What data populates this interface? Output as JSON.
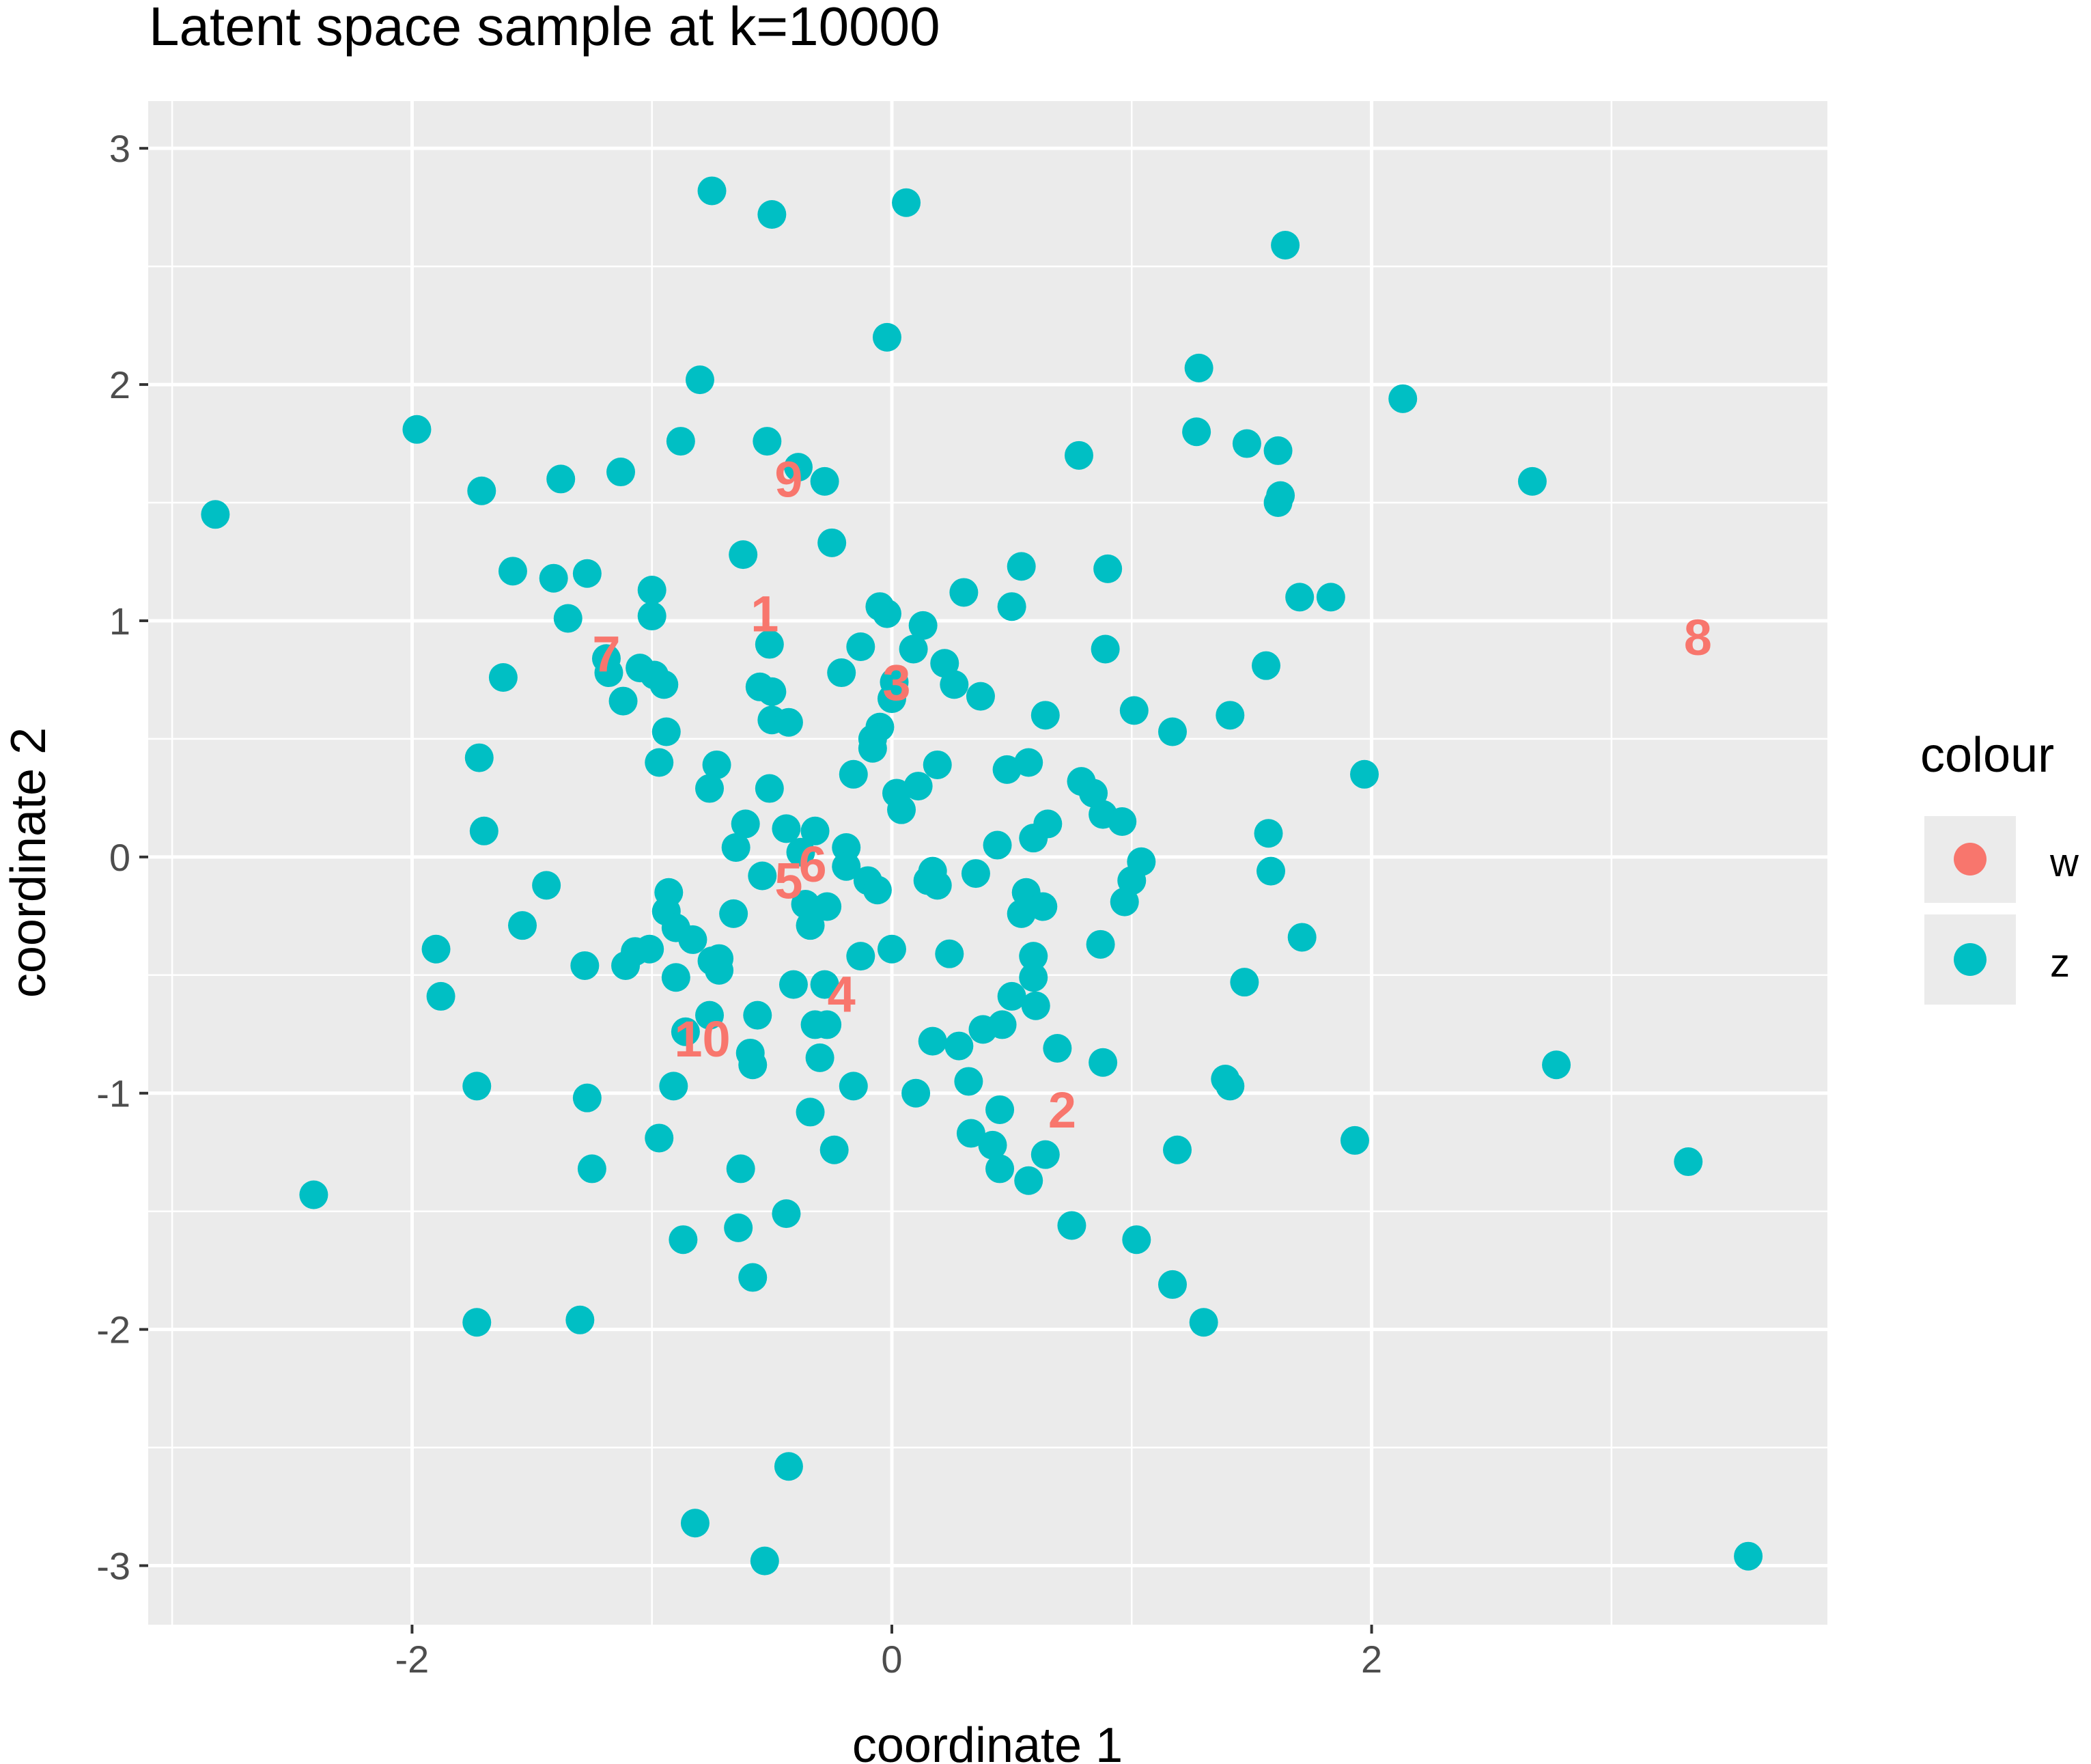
{
  "chart_data": {
    "type": "scatter",
    "title": "Latent space sample at k=10000",
    "xlabel": "coordinate 1",
    "ylabel": "coordinate 2",
    "xlim": [
      -3.1,
      3.9
    ],
    "ylim": [
      -3.25,
      3.2
    ],
    "x_ticks": [
      -2,
      0,
      2
    ],
    "y_ticks": [
      -3,
      -2,
      -1,
      0,
      1,
      2,
      3
    ],
    "grid": true,
    "background": "#EBEBEB",
    "legend": {
      "title": "colour",
      "position": "right",
      "entries": [
        {
          "name": "w",
          "color": "#F8766D"
        },
        {
          "name": "z",
          "color": "#00BFC4"
        }
      ]
    },
    "series": [
      {
        "name": "z",
        "color": "#00BFC4",
        "points": [
          [
            -0.75,
            2.82
          ],
          [
            -0.5,
            2.72
          ],
          [
            0.06,
            2.77
          ],
          [
            1.64,
            2.59
          ],
          [
            -0.02,
            2.2
          ],
          [
            -0.8,
            2.02
          ],
          [
            1.28,
            2.07
          ],
          [
            2.13,
            1.94
          ],
          [
            -1.98,
            1.81
          ],
          [
            -0.88,
            1.76
          ],
          [
            -0.52,
            1.76
          ],
          [
            1.27,
            1.8
          ],
          [
            1.48,
            1.75
          ],
          [
            1.61,
            1.72
          ],
          [
            0.78,
            1.7
          ],
          [
            -0.39,
            1.65
          ],
          [
            -1.71,
            1.55
          ],
          [
            -1.38,
            1.6
          ],
          [
            -1.13,
            1.63
          ],
          [
            -0.28,
            1.59
          ],
          [
            2.67,
            1.59
          ],
          [
            1.62,
            1.53
          ],
          [
            1.61,
            1.5
          ],
          [
            -2.82,
            1.45
          ],
          [
            -0.25,
            1.33
          ],
          [
            -0.62,
            1.28
          ],
          [
            -1.58,
            1.21
          ],
          [
            -1.41,
            1.18
          ],
          [
            -1.27,
            1.2
          ],
          [
            0.54,
            1.23
          ],
          [
            0.9,
            1.22
          ],
          [
            -1.0,
            1.13
          ],
          [
            0.3,
            1.12
          ],
          [
            -1.35,
            1.01
          ],
          [
            -1.0,
            1.02
          ],
          [
            -0.05,
            1.06
          ],
          [
            0.5,
            1.06
          ],
          [
            1.7,
            1.1
          ],
          [
            1.83,
            1.1
          ],
          [
            -0.02,
            1.03
          ],
          [
            0.13,
            0.98
          ],
          [
            -0.51,
            0.9
          ],
          [
            -0.13,
            0.89
          ],
          [
            0.09,
            0.88
          ],
          [
            0.89,
            0.88
          ],
          [
            -1.19,
            0.84
          ],
          [
            -1.18,
            0.78
          ],
          [
            -1.05,
            0.8
          ],
          [
            -0.99,
            0.77
          ],
          [
            -0.95,
            0.73
          ],
          [
            0.22,
            0.82
          ],
          [
            -0.21,
            0.78
          ],
          [
            1.56,
            0.81
          ],
          [
            -1.62,
            0.76
          ],
          [
            -0.55,
            0.72
          ],
          [
            -0.5,
            0.7
          ],
          [
            0.01,
            0.74
          ],
          [
            0.26,
            0.73
          ],
          [
            0.37,
            0.68
          ],
          [
            -1.12,
            0.66
          ],
          [
            -0.5,
            0.58
          ],
          [
            -0.43,
            0.57
          ],
          [
            0.0,
            0.67
          ],
          [
            0.64,
            0.6
          ],
          [
            1.01,
            0.62
          ],
          [
            1.41,
            0.6
          ],
          [
            -0.94,
            0.53
          ],
          [
            1.17,
            0.53
          ],
          [
            -0.05,
            0.55
          ],
          [
            -0.08,
            0.5
          ],
          [
            -0.08,
            0.46
          ],
          [
            -1.72,
            0.42
          ],
          [
            -0.73,
            0.39
          ],
          [
            0.19,
            0.39
          ],
          [
            0.57,
            0.4
          ],
          [
            0.48,
            0.37
          ],
          [
            -0.97,
            0.4
          ],
          [
            -0.16,
            0.35
          ],
          [
            1.97,
            0.35
          ],
          [
            0.79,
            0.32
          ],
          [
            0.11,
            0.3
          ],
          [
            -0.51,
            0.29
          ],
          [
            -0.76,
            0.29
          ],
          [
            0.84,
            0.27
          ],
          [
            0.02,
            0.27
          ],
          [
            0.04,
            0.2
          ],
          [
            0.88,
            0.18
          ],
          [
            0.96,
            0.15
          ],
          [
            -0.61,
            0.14
          ],
          [
            0.65,
            0.14
          ],
          [
            -0.44,
            0.12
          ],
          [
            -0.32,
            0.11
          ],
          [
            -1.7,
            0.11
          ],
          [
            1.57,
            0.1
          ],
          [
            0.59,
            0.08
          ],
          [
            -0.65,
            0.04
          ],
          [
            0.44,
            0.05
          ],
          [
            -0.19,
            0.04
          ],
          [
            -0.38,
            0.02
          ],
          [
            1.04,
            -0.02
          ],
          [
            -0.19,
            -0.04
          ],
          [
            0.17,
            -0.06
          ],
          [
            0.35,
            -0.07
          ],
          [
            1.58,
            -0.06
          ],
          [
            -0.54,
            -0.08
          ],
          [
            0.15,
            -0.1
          ],
          [
            0.19,
            -0.12
          ],
          [
            -0.1,
            -0.1
          ],
          [
            -1.44,
            -0.12
          ],
          [
            1.0,
            -0.1
          ],
          [
            -0.06,
            -0.14
          ],
          [
            -0.93,
            -0.15
          ],
          [
            0.56,
            -0.15
          ],
          [
            -0.36,
            -0.2
          ],
          [
            0.63,
            -0.21
          ],
          [
            -0.27,
            -0.21
          ],
          [
            0.97,
            -0.19
          ],
          [
            0.54,
            -0.24
          ],
          [
            -0.94,
            -0.23
          ],
          [
            -0.66,
            -0.24
          ],
          [
            -0.9,
            -0.3
          ],
          [
            -1.54,
            -0.29
          ],
          [
            -0.34,
            -0.29
          ],
          [
            -0.83,
            -0.35
          ],
          [
            1.71,
            -0.34
          ],
          [
            -1.07,
            -0.4
          ],
          [
            -1.01,
            -0.39
          ],
          [
            0.0,
            -0.39
          ],
          [
            0.87,
            -0.37
          ],
          [
            -1.9,
            -0.39
          ],
          [
            0.24,
            -0.41
          ],
          [
            -0.13,
            -0.42
          ],
          [
            0.59,
            -0.42
          ],
          [
            -0.75,
            -0.44
          ],
          [
            -0.72,
            -0.43
          ],
          [
            -1.11,
            -0.46
          ],
          [
            -1.28,
            -0.46
          ],
          [
            -0.72,
            -0.48
          ],
          [
            -0.9,
            -0.51
          ],
          [
            0.59,
            -0.51
          ],
          [
            -0.41,
            -0.54
          ],
          [
            -0.28,
            -0.54
          ],
          [
            1.47,
            -0.53
          ],
          [
            -1.88,
            -0.59
          ],
          [
            0.5,
            -0.59
          ],
          [
            0.6,
            -0.63
          ],
          [
            -0.56,
            -0.67
          ],
          [
            -0.76,
            -0.67
          ],
          [
            -0.32,
            -0.71
          ],
          [
            -0.27,
            -0.71
          ],
          [
            0.38,
            -0.73
          ],
          [
            0.46,
            -0.71
          ],
          [
            -0.86,
            -0.74
          ],
          [
            0.17,
            -0.78
          ],
          [
            0.28,
            -0.8
          ],
          [
            0.69,
            -0.81
          ],
          [
            -0.59,
            -0.83
          ],
          [
            -0.58,
            -0.88
          ],
          [
            -0.3,
            -0.85
          ],
          [
            0.88,
            -0.87
          ],
          [
            2.77,
            -0.88
          ],
          [
            1.39,
            -0.94
          ],
          [
            1.41,
            -0.97
          ],
          [
            -1.73,
            -0.97
          ],
          [
            -0.91,
            -0.97
          ],
          [
            -0.16,
            -0.97
          ],
          [
            0.32,
            -0.95
          ],
          [
            0.1,
            -1.0
          ],
          [
            -1.27,
            -1.02
          ],
          [
            0.45,
            -1.07
          ],
          [
            -0.34,
            -1.08
          ],
          [
            0.33,
            -1.17
          ],
          [
            -0.97,
            -1.19
          ],
          [
            0.42,
            -1.22
          ],
          [
            -0.24,
            -1.24
          ],
          [
            0.64,
            -1.26
          ],
          [
            1.19,
            -1.24
          ],
          [
            1.93,
            -1.2
          ],
          [
            -1.25,
            -1.32
          ],
          [
            -0.63,
            -1.32
          ],
          [
            0.45,
            -1.32
          ],
          [
            0.57,
            -1.37
          ],
          [
            3.32,
            -1.29
          ],
          [
            -2.41,
            -1.43
          ],
          [
            -0.44,
            -1.51
          ],
          [
            0.75,
            -1.56
          ],
          [
            -0.64,
            -1.57
          ],
          [
            -0.87,
            -1.62
          ],
          [
            1.02,
            -1.62
          ],
          [
            -0.58,
            -1.78
          ],
          [
            1.17,
            -1.81
          ],
          [
            -1.73,
            -1.97
          ],
          [
            -1.3,
            -1.96
          ],
          [
            1.3,
            -1.97
          ],
          [
            -0.43,
            -2.58
          ],
          [
            -0.82,
            -2.82
          ],
          [
            -0.53,
            -2.98
          ],
          [
            3.57,
            -2.96
          ]
        ]
      },
      {
        "name": "w",
        "color": "#F8766D",
        "labels": [
          {
            "text": "1",
            "x": -0.53,
            "y": 1.03
          },
          {
            "text": "2",
            "x": 0.71,
            "y": -1.07
          },
          {
            "text": "3",
            "x": 0.02,
            "y": 0.74
          },
          {
            "text": "4",
            "x": -0.21,
            "y": -0.58
          },
          {
            "text": "5",
            "x": -0.43,
            "y": -0.1
          },
          {
            "text": "6",
            "x": -0.33,
            "y": -0.03
          },
          {
            "text": "7",
            "x": -1.19,
            "y": 0.86
          },
          {
            "text": "8",
            "x": 3.36,
            "y": 0.93
          },
          {
            "text": "9",
            "x": -0.43,
            "y": 1.6
          },
          {
            "text": "10",
            "x": -0.79,
            "y": -0.77
          }
        ]
      }
    ]
  }
}
